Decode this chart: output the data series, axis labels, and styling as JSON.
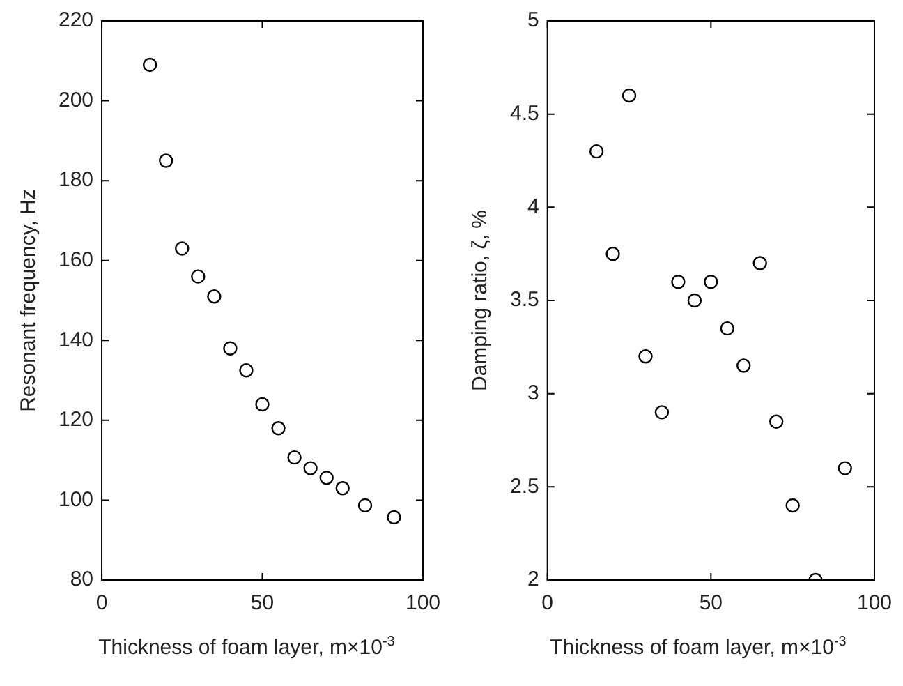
{
  "chart_data": [
    {
      "type": "scatter",
      "xlabel": "Thickness of foam layer, m×10$^{-3}$",
      "ylabel": "Resonant frequency, Hz",
      "marker": "circle",
      "grid": false,
      "x": [
        15,
        20,
        25,
        30,
        35,
        40,
        45,
        50,
        55,
        60,
        65,
        70,
        75,
        82,
        91
      ],
      "series": [
        {
          "color": "#000000",
          "values": [
            209,
            185,
            163,
            156,
            151,
            138,
            132.5,
            124,
            118,
            110.7,
            108,
            105.6,
            103,
            98.7,
            95.7
          ]
        }
      ],
      "xlim": [
        0,
        100
      ],
      "xticks": [
        0,
        50,
        100
      ],
      "ylim": [
        80,
        220
      ],
      "yticks": [
        80,
        100,
        120,
        140,
        160,
        180,
        200,
        220
      ]
    },
    {
      "type": "scatter",
      "xlabel": "Thickness of foam layer, m×10$^{-3}$",
      "ylabel": "Damping ratio, ζ, %",
      "marker": "circle",
      "grid": false,
      "x": [
        15,
        20,
        25,
        30,
        35,
        40,
        45,
        50,
        55,
        60,
        65,
        70,
        75,
        82,
        91
      ],
      "series": [
        {
          "color": "#000000",
          "values": [
            4.3,
            3.75,
            4.6,
            3.2,
            2.9,
            3.6,
            3.5,
            3.6,
            3.35,
            3.15,
            3.7,
            2.85,
            2.4,
            2.0,
            2.6
          ]
        }
      ],
      "xlim": [
        0,
        100
      ],
      "xticks": [
        0,
        50,
        100
      ],
      "ylim": [
        2,
        5
      ],
      "yticks": [
        2,
        2.5,
        3,
        3.5,
        4,
        4.5,
        5
      ]
    }
  ]
}
